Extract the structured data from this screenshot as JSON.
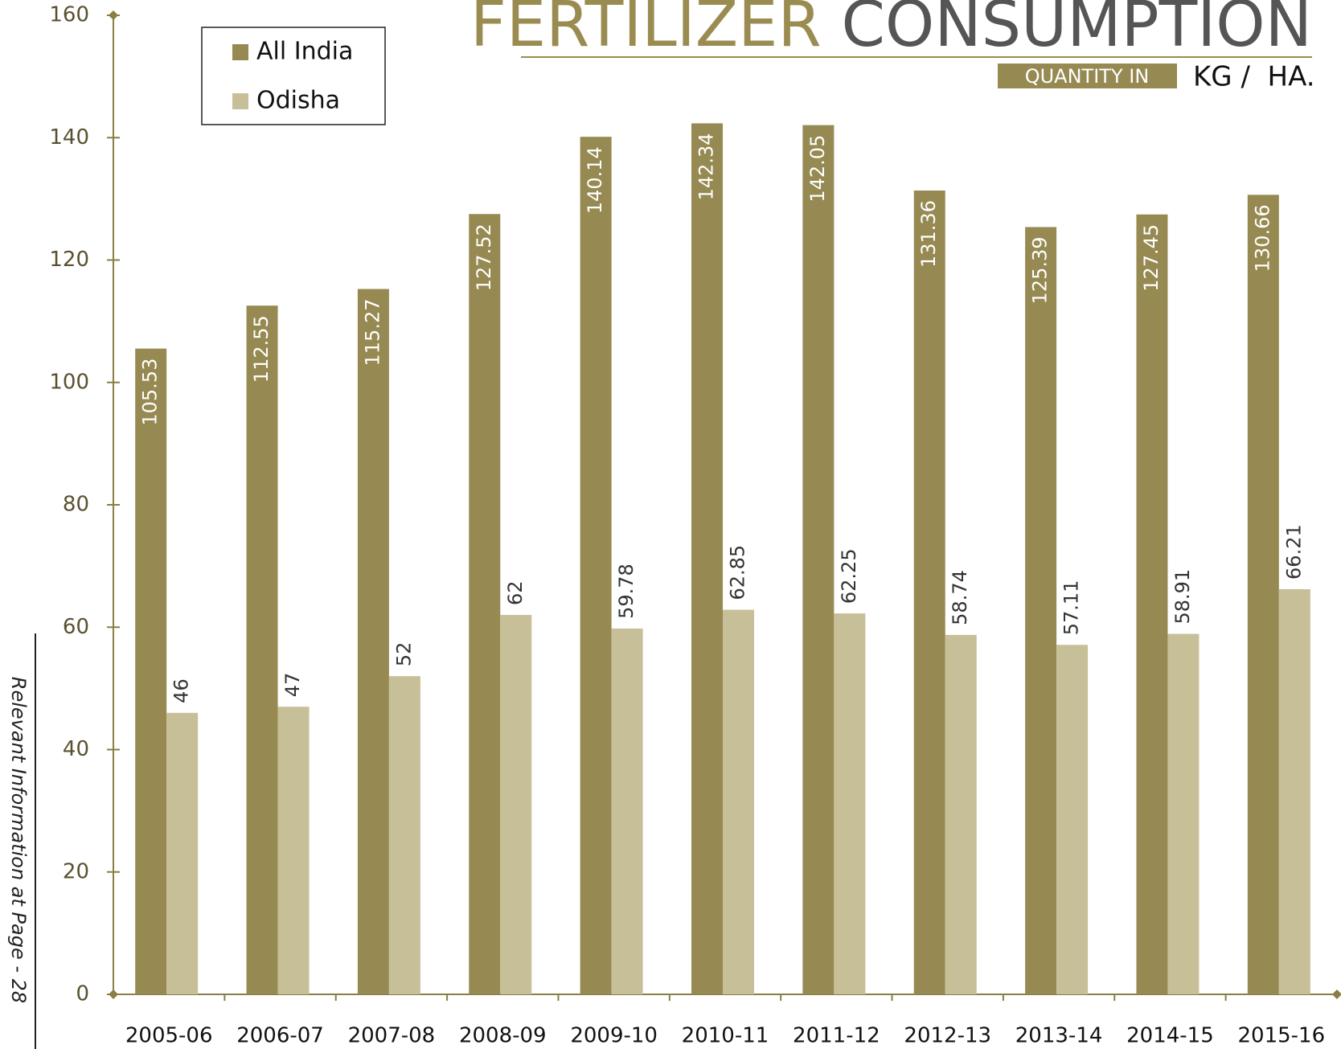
{
  "chart_data": {
    "type": "bar",
    "title": "FERTILIZER CONSUMPTION",
    "subtitle_box": "QUANTITY IN",
    "subtitle": "KG /  HA.",
    "side_note": "Relevant Information at Page - 28",
    "categories": [
      "2005-06",
      "2006-07",
      "2007-08",
      "2008-09",
      "2009-10",
      "2010-11",
      "2011-12",
      "2012-13",
      "2013-14",
      "2014-15",
      "2015-16"
    ],
    "series": [
      {
        "name": "All India",
        "color": "#968a52",
        "values": [
          105.53,
          112.55,
          115.27,
          127.52,
          140.14,
          142.34,
          142.05,
          131.36,
          125.39,
          127.45,
          130.66
        ]
      },
      {
        "name": "Odisha",
        "color": "#c7bf98",
        "values": [
          46,
          47,
          52,
          62,
          59.78,
          62.85,
          62.25,
          58.74,
          57.11,
          58.91,
          66.21
        ]
      }
    ],
    "ylim": [
      0,
      160
    ],
    "yticks": [
      0,
      20,
      40,
      60,
      80,
      100,
      120,
      140,
      160
    ],
    "legend": "upper left",
    "grid": false
  }
}
